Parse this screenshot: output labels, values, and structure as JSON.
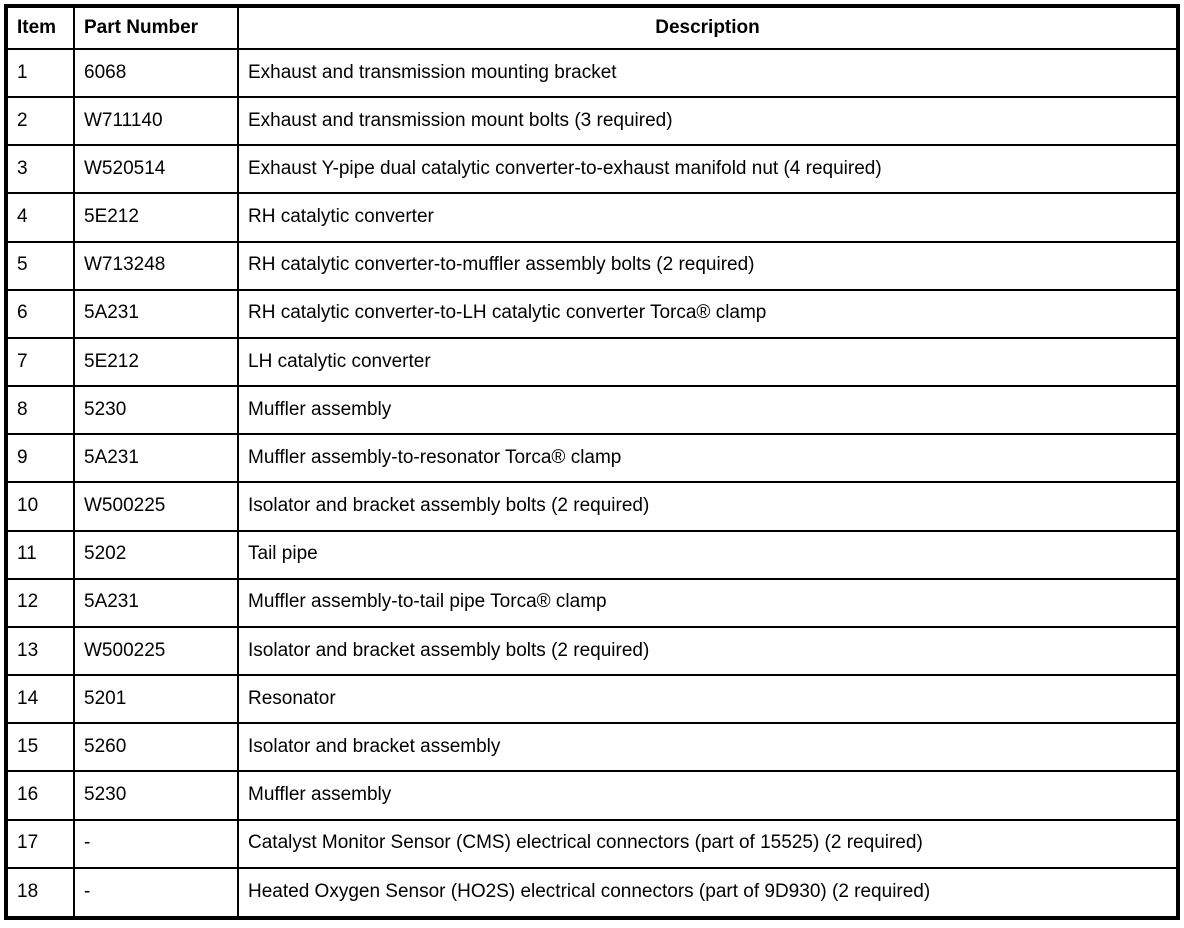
{
  "table": {
    "header": {
      "item": "Item",
      "part_number": "Part Number",
      "description": "Description"
    },
    "rows": [
      {
        "item": "1",
        "part": "6068",
        "description": "Exhaust and transmission mounting bracket"
      },
      {
        "item": "2",
        "part": "W711140",
        "description": "Exhaust and transmission mount bolts (3 required)"
      },
      {
        "item": "3",
        "part": "W520514",
        "description": "Exhaust Y-pipe dual catalytic converter-to-exhaust manifold nut (4 required)"
      },
      {
        "item": "4",
        "part": "5E212",
        "description": "RH catalytic converter"
      },
      {
        "item": "5",
        "part": "W713248",
        "description": "RH catalytic converter-to-muffler assembly bolts (2 required)"
      },
      {
        "item": "6",
        "part": "5A231",
        "description": "RH catalytic converter-to-LH catalytic converter Torca® clamp"
      },
      {
        "item": "7",
        "part": "5E212",
        "description": "LH catalytic converter"
      },
      {
        "item": "8",
        "part": "5230",
        "description": "Muffler assembly"
      },
      {
        "item": "9",
        "part": "5A231",
        "description": "Muffler assembly-to-resonator Torca® clamp"
      },
      {
        "item": "10",
        "part": "W500225",
        "description": "Isolator and bracket assembly bolts (2 required)"
      },
      {
        "item": "11",
        "part": "5202",
        "description": "Tail pipe"
      },
      {
        "item": "12",
        "part": "5A231",
        "description": "Muffler assembly-to-tail pipe Torca® clamp"
      },
      {
        "item": "13",
        "part": "W500225",
        "description": "Isolator and bracket assembly bolts (2 required)"
      },
      {
        "item": "14",
        "part": "5201",
        "description": "Resonator"
      },
      {
        "item": "15",
        "part": "5260",
        "description": "Isolator and bracket assembly"
      },
      {
        "item": "16",
        "part": "5230",
        "description": "Muffler assembly"
      },
      {
        "item": "17",
        "part": "-",
        "description": "Catalyst Monitor Sensor (CMS) electrical connectors (part of 15525) (2 required)"
      },
      {
        "item": "18",
        "part": "-",
        "description": "Heated Oxygen Sensor (HO2S) electrical connectors (part of 9D930) (2 required)"
      }
    ]
  }
}
